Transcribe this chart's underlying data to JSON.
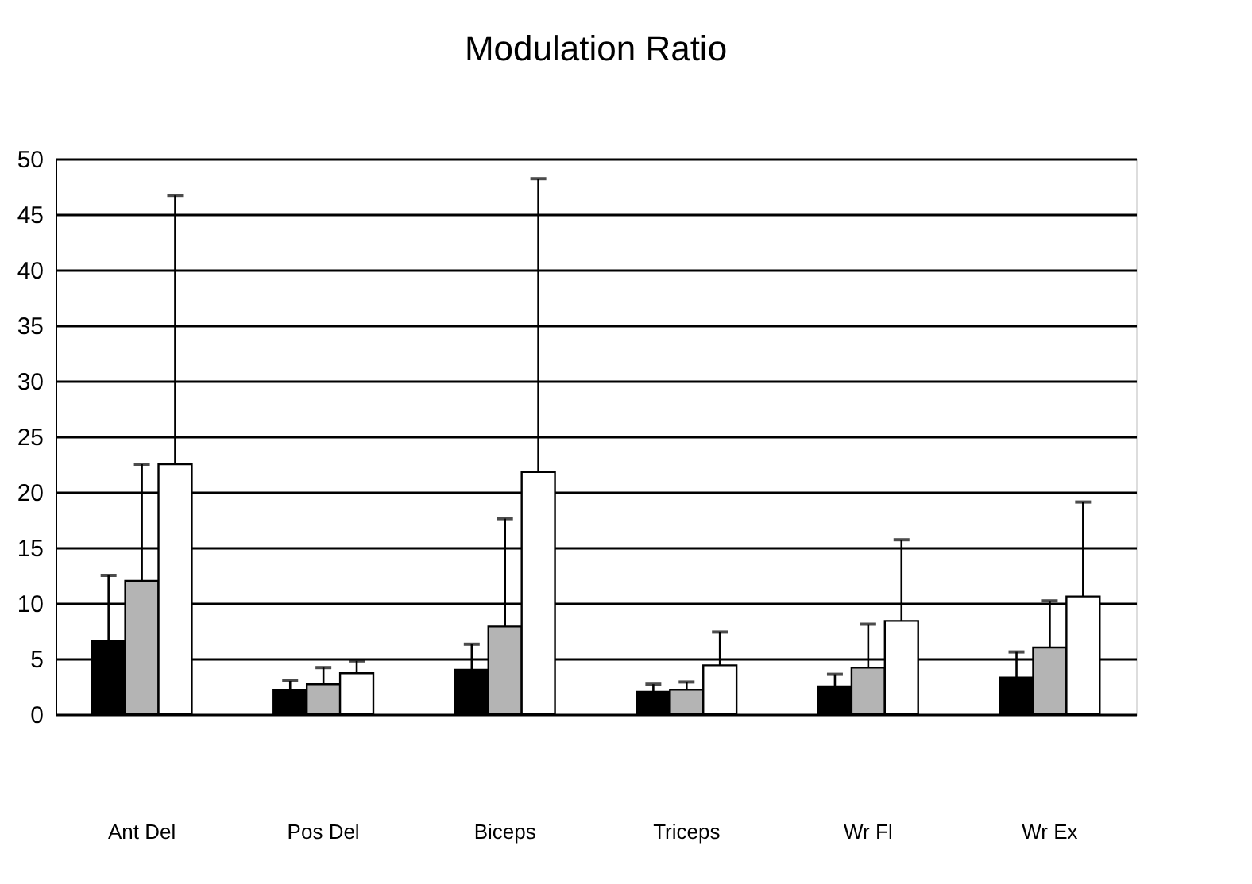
{
  "chart_data": {
    "type": "bar",
    "title": "Modulation Ratio",
    "categories": [
      "Ant Del",
      "Pos Del",
      "Biceps",
      "Triceps",
      "Wr Fl",
      "Wr Ex"
    ],
    "series": [
      {
        "color": "#000000",
        "values": [
          6.6,
          2.2,
          4.0,
          2.0,
          2.5,
          3.3
        ],
        "errors": [
          [
            6.6,
            12.5
          ],
          [
            2.2,
            3.0
          ],
          [
            4.0,
            6.3
          ],
          [
            2.0,
            2.7
          ],
          [
            2.5,
            3.6
          ],
          [
            3.3,
            5.6
          ]
        ]
      },
      {
        "color": "#b4b4b4",
        "values": [
          12.0,
          2.7,
          7.9,
          2.2,
          4.2,
          6.0
        ],
        "errors": [
          [
            12.0,
            22.5
          ],
          [
            2.7,
            4.2
          ],
          [
            7.9,
            17.6
          ],
          [
            2.2,
            2.9
          ],
          [
            4.2,
            8.1
          ],
          [
            6.0,
            10.2
          ]
        ]
      },
      {
        "color": "#ffffff",
        "values": [
          22.5,
          3.7,
          21.8,
          4.4,
          8.4,
          10.6
        ],
        "errors": [
          [
            22.5,
            46.7
          ],
          [
            3.7,
            4.8
          ],
          [
            21.8,
            48.2
          ],
          [
            4.4,
            7.4
          ],
          [
            8.4,
            15.7
          ],
          [
            10.6,
            19.1
          ]
        ]
      }
    ],
    "ylim": [
      0,
      50
    ],
    "yticks": [
      0,
      5,
      10,
      15,
      20,
      25,
      30,
      35,
      40,
      45,
      50
    ],
    "grid": "y",
    "legend": false
  }
}
